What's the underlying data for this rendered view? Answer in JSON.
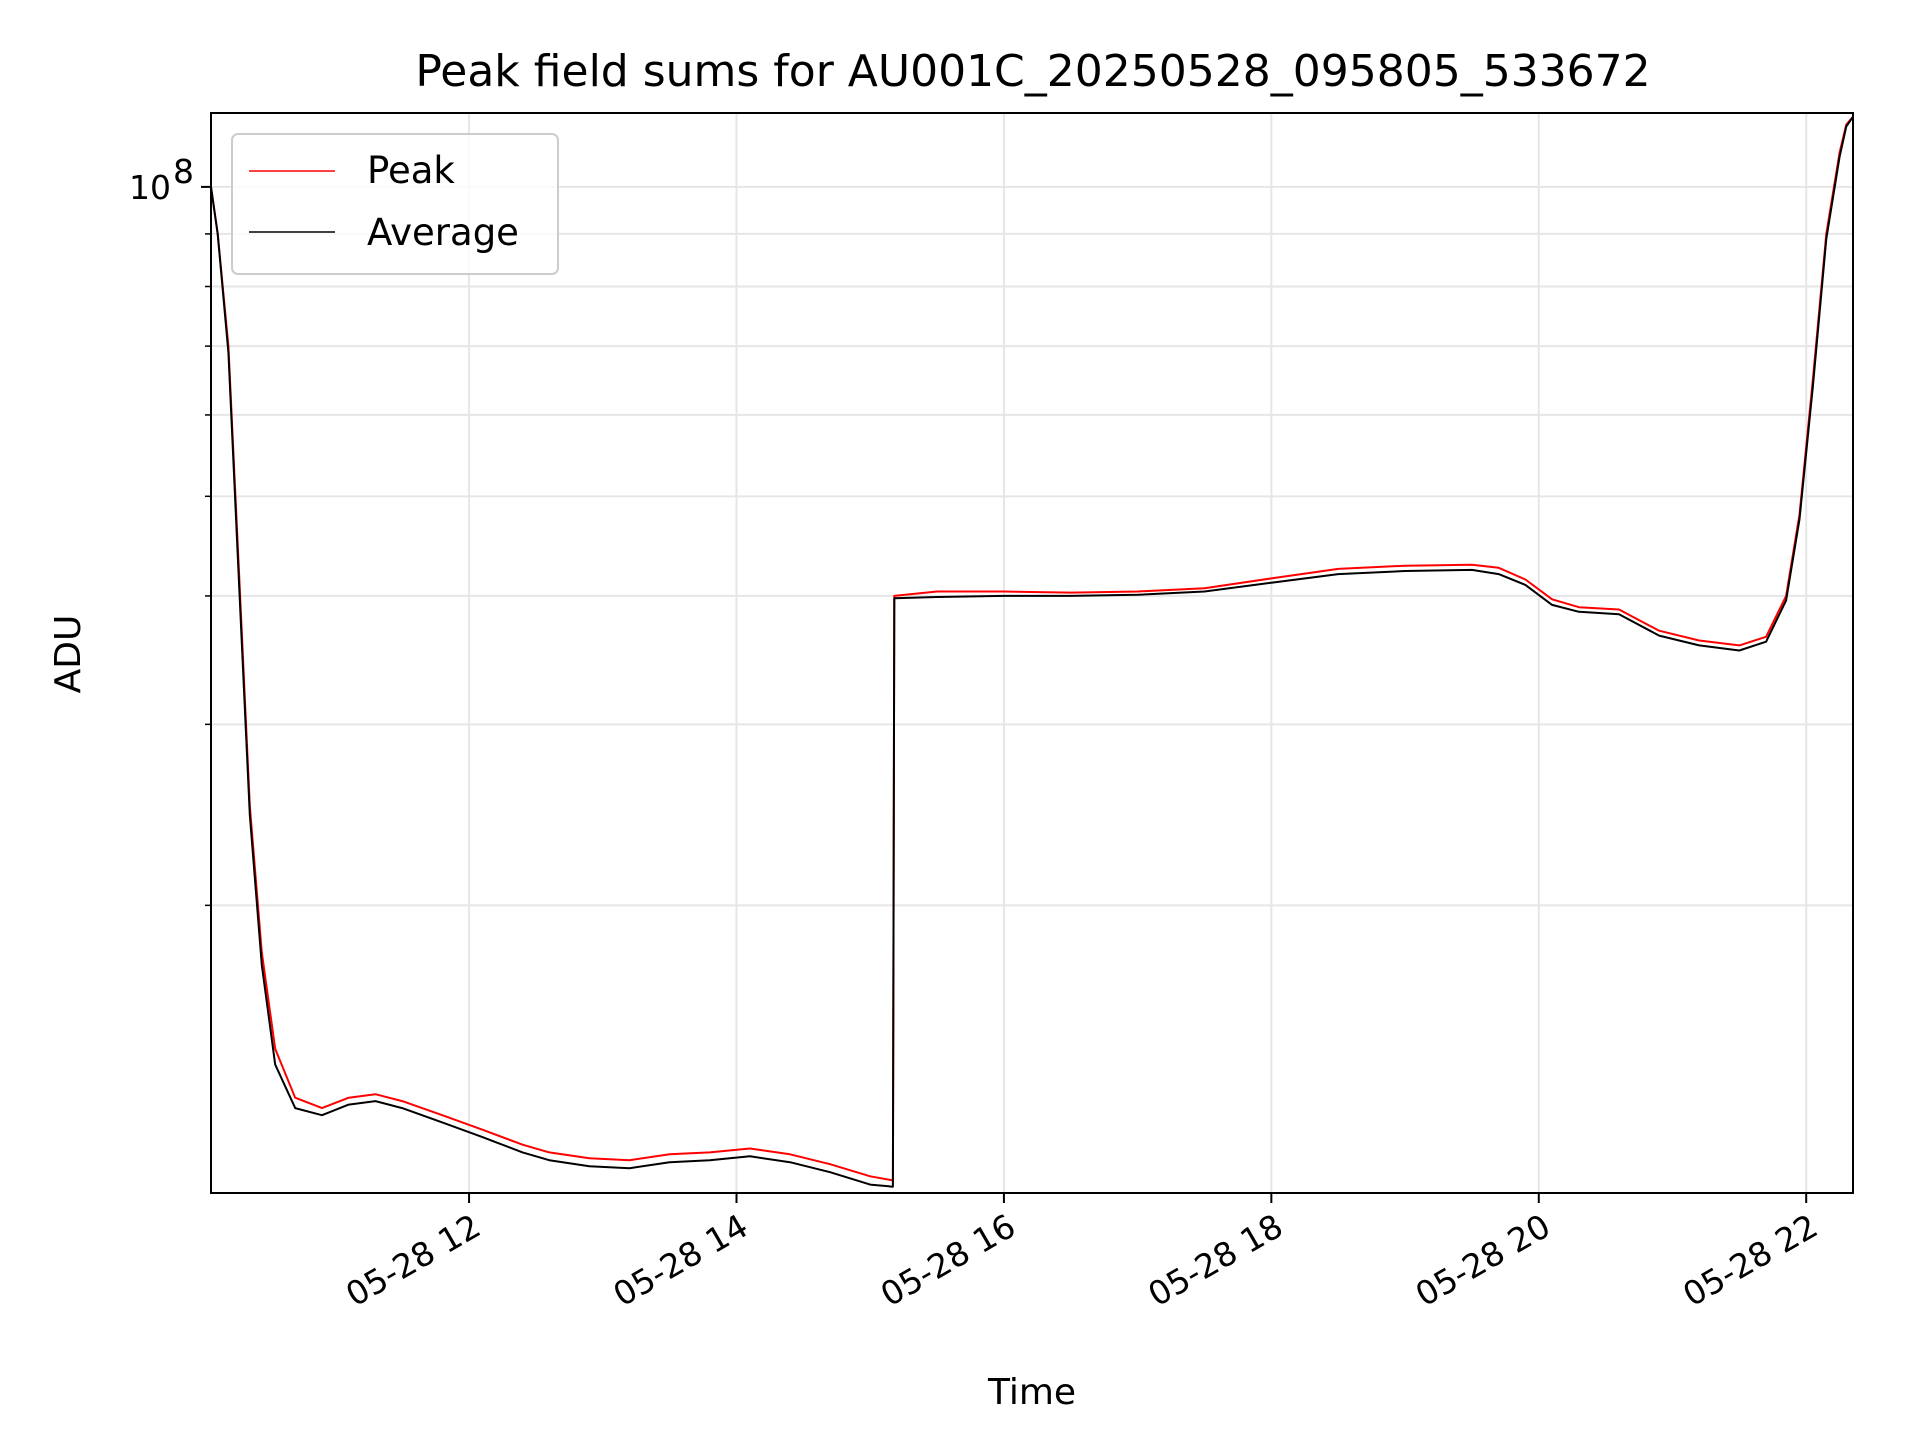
{
  "chart_data": {
    "type": "line",
    "title": "Peak field sums for AU001C_20250528_095805_533672",
    "xlabel": "Time",
    "ylabel": "ADU",
    "y_scale": "log",
    "x_unit": "hours (2025-05-28, local)",
    "xlim": [
      10.07,
      22.35
    ],
    "ylim": [
      10500000,
      118000000
    ],
    "x_ticks": [
      {
        "value": 12,
        "label": "05-28 12"
      },
      {
        "value": 14,
        "label": "05-28 14"
      },
      {
        "value": 16,
        "label": "05-28 16"
      },
      {
        "value": 18,
        "label": "05-28 18"
      },
      {
        "value": 20,
        "label": "05-28 20"
      },
      {
        "value": 22,
        "label": "05-28 22"
      }
    ],
    "y_ticks": [
      {
        "value": 100000000,
        "label": "10",
        "exponent": "8"
      }
    ],
    "y_minor_ticks": [
      20000000,
      30000000,
      40000000,
      50000000,
      60000000,
      70000000,
      80000000,
      90000000
    ],
    "grid": true,
    "legend_position": "top-left",
    "series": [
      {
        "name": "Peak",
        "color": "#ff0000",
        "x": [
          10.07,
          10.12,
          10.2,
          10.28,
          10.36,
          10.45,
          10.55,
          10.7,
          10.9,
          11.1,
          11.3,
          11.5,
          11.8,
          12.1,
          12.4,
          12.6,
          12.9,
          13.2,
          13.5,
          13.8,
          14.1,
          14.4,
          14.7,
          15.0,
          15.17,
          15.18,
          15.5,
          16.0,
          16.5,
          17.0,
          17.5,
          18.0,
          18.5,
          19.0,
          19.5,
          19.7,
          19.9,
          20.1,
          20.3,
          20.6,
          20.9,
          21.2,
          21.5,
          21.7,
          21.85,
          21.95,
          22.05,
          22.15,
          22.25,
          22.3,
          22.35
        ],
        "y": [
          100000000,
          90000000,
          70000000,
          42000000,
          25000000,
          18000000,
          14500000,
          13000000,
          12700000,
          13000000,
          13100000,
          12900000,
          12500000,
          12100000,
          11700000,
          11500000,
          11350000,
          11300000,
          11450000,
          11500000,
          11600000,
          11450000,
          11200000,
          10900000,
          10800000,
          40000000,
          40400000,
          40400000,
          40300000,
          40400000,
          40700000,
          41600000,
          42500000,
          42800000,
          42900000,
          42600000,
          41500000,
          39700000,
          39000000,
          38800000,
          37000000,
          36200000,
          35800000,
          36500000,
          40000000,
          48000000,
          65000000,
          90000000,
          108000000,
          115000000,
          117000000
        ]
      },
      {
        "name": "Average",
        "color": "#000000",
        "x": [
          10.07,
          10.12,
          10.2,
          10.28,
          10.36,
          10.45,
          10.55,
          10.7,
          10.9,
          11.1,
          11.3,
          11.5,
          11.8,
          12.1,
          12.4,
          12.6,
          12.9,
          13.2,
          13.5,
          13.8,
          14.1,
          14.4,
          14.7,
          15.0,
          15.17,
          15.18,
          15.5,
          16.0,
          16.5,
          17.0,
          17.5,
          18.0,
          18.5,
          19.0,
          19.5,
          19.7,
          19.9,
          20.1,
          20.3,
          20.6,
          20.9,
          21.2,
          21.5,
          21.7,
          21.85,
          21.95,
          22.05,
          22.15,
          22.25,
          22.3,
          22.35
        ],
        "y": [
          100000000,
          90000000,
          69000000,
          41000000,
          24500000,
          17500000,
          14000000,
          12700000,
          12500000,
          12800000,
          12900000,
          12700000,
          12300000,
          11900000,
          11500000,
          11300000,
          11150000,
          11100000,
          11250000,
          11300000,
          11400000,
          11250000,
          11000000,
          10700000,
          10650000,
          39800000,
          39900000,
          40000000,
          40000000,
          40100000,
          40400000,
          41200000,
          42000000,
          42300000,
          42400000,
          42000000,
          41000000,
          39200000,
          38600000,
          38400000,
          36600000,
          35800000,
          35400000,
          36100000,
          39600000,
          47500000,
          64000000,
          89000000,
          107000000,
          114500000,
          117000000
        ]
      }
    ]
  }
}
